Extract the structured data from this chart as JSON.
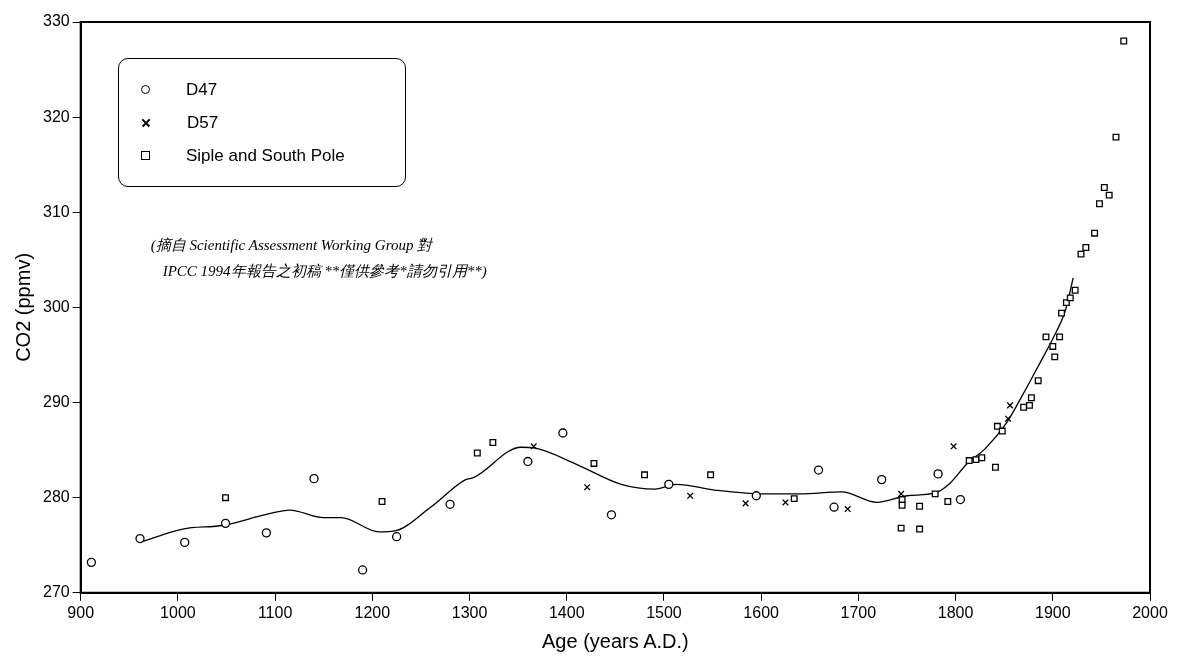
{
  "chart_data": {
    "type": "scatter",
    "xlabel": "Age (years A.D.)",
    "ylabel": "CO2 (ppmv)",
    "xlim": [
      900,
      2000
    ],
    "xticks": [
      900,
      1000,
      1100,
      1200,
      1300,
      1400,
      1500,
      1600,
      1700,
      1800,
      1900,
      2000
    ],
    "ylim": [
      270,
      330
    ],
    "yticks": [
      270,
      280,
      290,
      300,
      310,
      320,
      330
    ],
    "grid": false,
    "legend": "top left",
    "annotations": [
      "(摘自 Scientific Assessment Working Group 對",
      "IPCC 1994年報告之初稿 **僅供參考*請勿引用**)"
    ],
    "series": [
      {
        "name": "D47",
        "marker": "circle",
        "color": "#000000",
        "x": [
          911,
          961,
          1007,
          1049,
          1091,
          1140,
          1190,
          1225,
          1280,
          1360,
          1396,
          1446,
          1505,
          1595,
          1659,
          1675,
          1724,
          1782,
          1805
        ],
        "values": [
          273.2,
          275.7,
          275.3,
          277.3,
          276.3,
          282.0,
          272.4,
          275.9,
          279.3,
          283.8,
          286.8,
          278.2,
          281.4,
          280.2,
          282.9,
          279.0,
          281.9,
          282.5,
          279.8
        ]
      },
      {
        "name": "D57",
        "marker": "cross",
        "color": "#000000",
        "x": [
          1366,
          1421,
          1527,
          1584,
          1625,
          1689,
          1744,
          1798,
          1854,
          1856
        ],
        "values": [
          285.4,
          281.1,
          280.2,
          279.4,
          279.5,
          278.8,
          280.4,
          285.4,
          288.3,
          289.7
        ]
      },
      {
        "name": "Siple and South Pole",
        "marker": "square",
        "color": "#000000",
        "x": [
          1049,
          1210,
          1308,
          1324,
          1428,
          1480,
          1548,
          1634,
          1745,
          1745,
          1744,
          1763,
          1763,
          1779,
          1792,
          1814,
          1821,
          1827,
          1841,
          1843,
          1848,
          1870,
          1876,
          1878,
          1885,
          1893,
          1907,
          1900,
          1902,
          1909,
          1914,
          1918,
          1923,
          1929,
          1934,
          1943,
          1948,
          1953,
          1958,
          1965,
          1973
        ],
        "values": [
          280.0,
          279.6,
          284.7,
          285.8,
          283.6,
          282.4,
          282.4,
          279.9,
          279.8,
          279.2,
          276.8,
          279.1,
          276.7,
          280.4,
          279.6,
          283.9,
          284.0,
          284.2,
          283.2,
          287.5,
          287.0,
          289.5,
          289.7,
          290.5,
          292.3,
          296.9,
          296.9,
          295.9,
          294.8,
          299.4,
          300.5,
          301.0,
          301.8,
          305.6,
          306.3,
          307.8,
          310.9,
          312.6,
          311.8,
          317.9,
          328.0
        ]
      },
      {
        "type": "line",
        "marker": "none",
        "line_style": "solid",
        "color": "#000000",
        "x": [
          961,
          1005,
          1047,
          1093,
          1115,
          1150,
          1168,
          1207,
          1223,
          1260,
          1296,
          1304,
          1353,
          1368,
          1410,
          1456,
          1491,
          1513,
          1552,
          1601,
          1640,
          1683,
          1719,
          1750,
          1779,
          1794,
          1812,
          1830,
          1852,
          1869,
          1887,
          1900,
          1913,
          1921
        ],
        "values": [
          275.3,
          276.7,
          277.1,
          278.3,
          278.7,
          277.9,
          277.9,
          276.4,
          276.5,
          279.0,
          281.9,
          282.1,
          285.3,
          285.2,
          283.5,
          281.4,
          280.9,
          281.4,
          280.8,
          280.4,
          280.4,
          280.6,
          279.5,
          280.2,
          280.5,
          281.5,
          283.6,
          285.1,
          287.8,
          290.8,
          294.2,
          296.7,
          299.7,
          303.1
        ]
      }
    ]
  }
}
